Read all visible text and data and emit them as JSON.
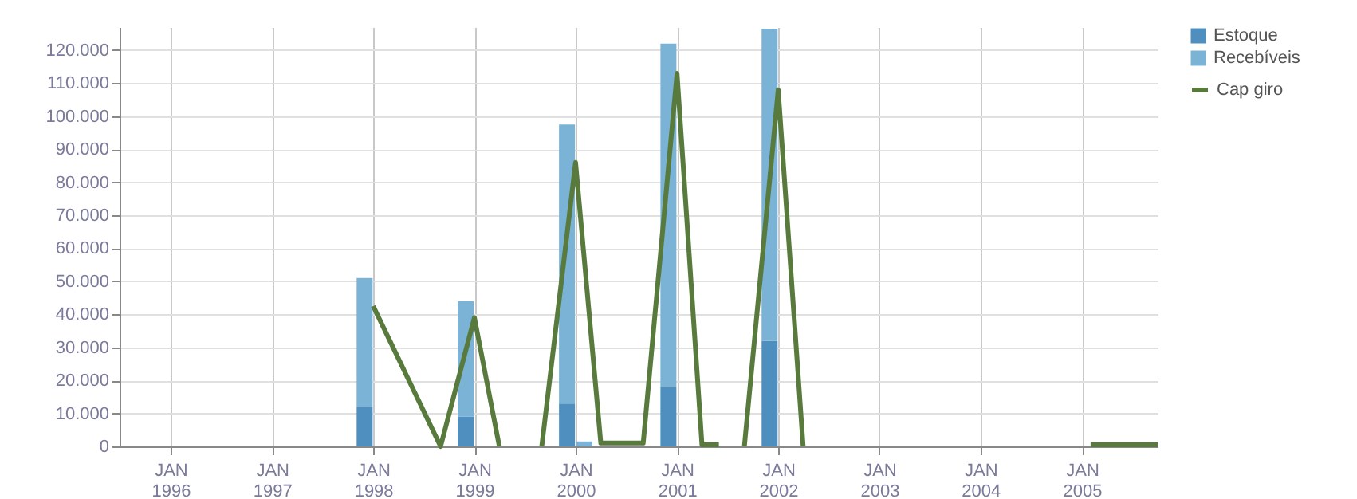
{
  "chart_data": {
    "type": "bar",
    "stacked": true,
    "series": [
      {
        "name": "Estoque",
        "color": "#4f8fbf",
        "values": [
          12000,
          9000,
          13000,
          null,
          18000,
          32000
        ]
      },
      {
        "name": "Recebíveis",
        "color": "#7ab3d6",
        "values": [
          39000,
          35000,
          84500,
          1500,
          104000,
          94500
        ]
      },
      {
        "name": "Cap giro",
        "type": "line",
        "color": "#587a3c",
        "x": [
          "1998-01",
          "1998-09",
          "1999-01",
          "1999-04",
          "1999-06",
          "1999-09",
          "2000-01",
          "2000-04",
          "2000-09",
          "2001-01",
          "2001-04",
          "2001-06",
          "2001-07",
          "2001-09",
          "2002-01",
          "2002-04",
          "2002-06",
          "2005-02",
          "2005-10"
        ],
        "values": [
          42500,
          0,
          39000,
          0,
          null,
          0,
          86000,
          1000,
          1000,
          113000,
          500,
          500,
          null,
          0,
          108000,
          0,
          null,
          500,
          500
        ]
      }
    ],
    "x": [
      "1997-12",
      "1998-12",
      "1999-12",
      "2000-02",
      "2000-12",
      "2001-12"
    ],
    "xlim": [
      "1995-07",
      "2005-10"
    ],
    "xticks": [
      {
        "value": "1996-01",
        "label": "JAN 1996"
      },
      {
        "value": "1997-01",
        "label": "JAN 1997"
      },
      {
        "value": "1998-01",
        "label": "JAN 1998"
      },
      {
        "value": "1999-01",
        "label": "JAN 1999"
      },
      {
        "value": "2000-01",
        "label": "JAN 2000"
      },
      {
        "value": "2001-01",
        "label": "JAN 2001"
      },
      {
        "value": "2002-01",
        "label": "JAN 2002"
      },
      {
        "value": "2003-01",
        "label": "JAN 2003"
      },
      {
        "value": "2004-01",
        "label": "JAN 2004"
      },
      {
        "value": "2005-01",
        "label": "JAN 2005"
      }
    ],
    "ylim": [
      0,
      127000
    ],
    "yticks": [
      0,
      {
        "value": 10000,
        "label": "10.000"
      },
      {
        "value": 20000,
        "label": "20.000"
      },
      {
        "value": 30000,
        "label": "30.000"
      },
      {
        "value": 40000,
        "label": "40.000"
      },
      {
        "value": 50000,
        "label": "50.000"
      },
      {
        "value": 60000,
        "label": "60.000"
      },
      {
        "value": 70000,
        "label": "70.000"
      },
      {
        "value": 80000,
        "label": "80.000"
      },
      {
        "value": 90000,
        "label": "90.000"
      },
      {
        "value": 100000,
        "label": "100.000"
      },
      {
        "value": 110000,
        "label": "110.000"
      },
      {
        "value": 120000,
        "label": "120.000"
      }
    ],
    "grid": true,
    "legend": "top right",
    "line_style": "solid"
  }
}
